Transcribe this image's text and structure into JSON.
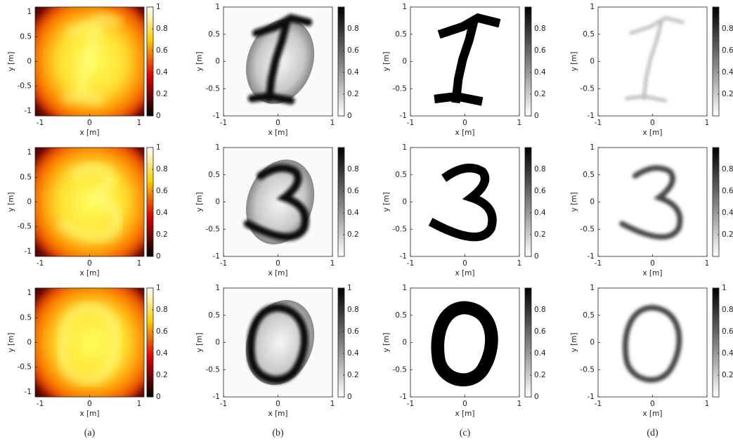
{
  "chart_data": [
    {
      "type": "heatmap",
      "colormap": "hot",
      "xlabel": "x [m]",
      "ylabel": "y [m]",
      "xlim": [
        -1.1,
        1.1
      ],
      "ylim": [
        -1.1,
        1.1
      ],
      "xticks": [
        -1,
        0,
        1
      ],
      "yticks": [
        -1,
        -0.5,
        0,
        0.5,
        1
      ],
      "clim": [
        0,
        1
      ],
      "cticks": [
        0,
        0.2,
        0.4,
        0.6,
        0.8,
        1
      ]
    },
    {
      "type": "heatmap",
      "colormap": "gray-inverse",
      "xlabel": "x [m]",
      "ylabel": "y [m]",
      "xlim": [
        -1,
        1
      ],
      "ylim": [
        -1,
        1
      ],
      "xticks": [
        -1,
        0,
        1
      ],
      "yticks": [
        -1,
        -0.5,
        0,
        0.5,
        1
      ],
      "clim": [
        0,
        1
      ],
      "cticks": [
        0,
        0.2,
        0.4,
        0.6,
        0.8
      ]
    },
    {
      "type": "heatmap",
      "colormap": "gray-inverse",
      "xlabel": "x [m]",
      "ylabel": "y [m]",
      "xlim": [
        -1,
        1
      ],
      "ylim": [
        -1,
        1
      ],
      "xticks": [
        -1,
        0,
        1
      ],
      "yticks": [
        -1,
        -0.5,
        0,
        0.5,
        1
      ],
      "clim": [
        0,
        1
      ],
      "cticks": [
        0,
        0.2,
        0.4,
        0.6,
        0.8
      ]
    },
    {
      "type": "heatmap",
      "colormap": "gray-inverse",
      "xlabel": "x [m]",
      "ylabel": "y [m]",
      "xlim": [
        -1,
        1
      ],
      "ylim": [
        -1,
        1
      ],
      "xticks": [
        -1,
        0,
        1
      ],
      "yticks": [
        -1,
        -0.5,
        0,
        0.5,
        1
      ],
      "clim": [
        0,
        1
      ],
      "cticks": [
        0.2,
        0.4,
        0.6,
        0.8
      ]
    },
    {
      "type": "heatmap",
      "colormap": "hot",
      "xlabel": "x [m]",
      "ylabel": "y [m]",
      "xlim": [
        -1.1,
        1.1
      ],
      "ylim": [
        -1.1,
        1.1
      ],
      "xticks": [
        -1,
        0,
        1
      ],
      "yticks": [
        -1,
        -0.5,
        0,
        0.5,
        1
      ],
      "clim": [
        0,
        1
      ],
      "cticks": [
        0,
        0.2,
        0.4,
        0.6,
        0.8,
        1
      ]
    },
    {
      "type": "heatmap",
      "colormap": "gray-inverse",
      "xlabel": "x [m]",
      "ylabel": "y [m]",
      "xlim": [
        -1,
        1
      ],
      "ylim": [
        -1,
        1
      ],
      "xticks": [
        -1,
        0,
        1
      ],
      "yticks": [
        -1,
        -0.5,
        0,
        0.5,
        1
      ],
      "clim": [
        0,
        1
      ],
      "cticks": [
        0.2,
        0.4,
        0.6,
        0.8
      ]
    },
    {
      "type": "heatmap",
      "colormap": "gray-inverse",
      "xlabel": "x [m]",
      "ylabel": "y [m]",
      "xlim": [
        -1,
        1
      ],
      "ylim": [
        -1,
        1
      ],
      "xticks": [
        -1,
        0,
        1
      ],
      "yticks": [
        -1,
        -0.5,
        0,
        0.5,
        1
      ],
      "clim": [
        0,
        1
      ],
      "cticks": [
        0,
        0.2,
        0.4,
        0.6,
        0.8
      ]
    },
    {
      "type": "heatmap",
      "colormap": "gray-inverse",
      "xlabel": "x [m]",
      "ylabel": "y [m]",
      "xlim": [
        -1,
        1
      ],
      "ylim": [
        -1,
        1
      ],
      "xticks": [
        -1,
        0,
        1
      ],
      "yticks": [
        -1,
        -0.5,
        0,
        0.5,
        1
      ],
      "clim": [
        0,
        1
      ],
      "cticks": [
        0.2,
        0.4,
        0.6,
        0.8
      ]
    },
    {
      "type": "heatmap",
      "colormap": "hot",
      "xlabel": "x [m]",
      "ylabel": "y [m]",
      "xlim": [
        -1.1,
        1.1
      ],
      "ylim": [
        -1.1,
        1.1
      ],
      "xticks": [
        -1,
        0,
        1
      ],
      "yticks": [
        -1,
        -0.5,
        0,
        0.5,
        1
      ],
      "clim": [
        0,
        1
      ],
      "cticks": [
        0,
        0.2,
        0.4,
        0.6,
        0.8,
        1
      ]
    },
    {
      "type": "heatmap",
      "colormap": "gray-inverse",
      "xlabel": "x [m]",
      "ylabel": "y [m]",
      "xlim": [
        -1,
        1
      ],
      "ylim": [
        -1,
        1
      ],
      "xticks": [
        -1,
        0,
        1
      ],
      "yticks": [
        -1,
        -0.5,
        0,
        0.5,
        1
      ],
      "clim": [
        0,
        1
      ],
      "cticks": [
        0,
        0.2,
        0.4,
        0.6,
        0.8,
        1
      ]
    },
    {
      "type": "heatmap",
      "colormap": "gray-inverse",
      "xlabel": "x [m]",
      "ylabel": "y [m]",
      "xlim": [
        -1,
        1
      ],
      "ylim": [
        -1,
        1
      ],
      "xticks": [
        -1,
        0,
        1
      ],
      "yticks": [
        -1,
        -0.5,
        0,
        0.5,
        1
      ],
      "clim": [
        0,
        1
      ],
      "cticks": [
        0,
        0.2,
        0.4,
        0.6,
        0.8
      ]
    },
    {
      "type": "heatmap",
      "colormap": "gray-inverse",
      "xlabel": "x [m]",
      "ylabel": "y [m]",
      "xlim": [
        -1,
        1
      ],
      "ylim": [
        -1,
        1
      ],
      "xticks": [
        -1,
        0,
        1
      ],
      "yticks": [
        -1,
        -0.5,
        0,
        0.5,
        1
      ],
      "clim": [
        0,
        1
      ],
      "cticks": [
        0.2,
        0.4,
        0.6,
        0.8,
        1
      ]
    }
  ],
  "captions": [
    "(a)",
    "(b)",
    "(c)",
    "(d)"
  ]
}
